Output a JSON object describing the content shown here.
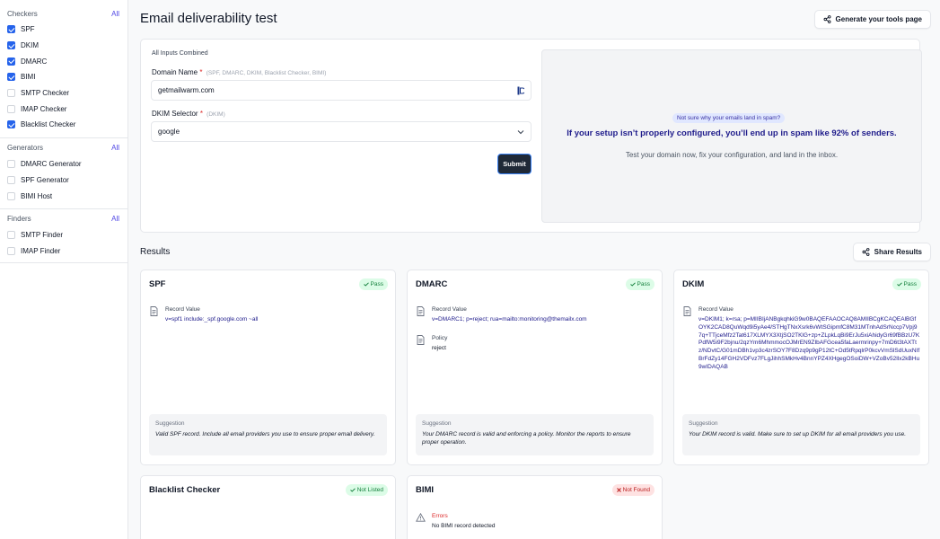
{
  "sidebar": {
    "sections": [
      {
        "title": "Checkers",
        "all": "All",
        "items": [
          {
            "label": "SPF",
            "checked": true
          },
          {
            "label": "DKIM",
            "checked": true
          },
          {
            "label": "DMARC",
            "checked": true
          },
          {
            "label": "BIMI",
            "checked": true
          },
          {
            "label": "SMTP Checker",
            "checked": false
          },
          {
            "label": "IMAP Checker",
            "checked": false
          },
          {
            "label": "Blacklist Checker",
            "checked": true
          }
        ]
      },
      {
        "title": "Generators",
        "all": "All",
        "items": [
          {
            "label": "DMARC Generator",
            "checked": false
          },
          {
            "label": "SPF Generator",
            "checked": false
          },
          {
            "label": "BIMI Host",
            "checked": false
          }
        ]
      },
      {
        "title": "Finders",
        "all": "All",
        "items": [
          {
            "label": "SMTP Finder",
            "checked": false
          },
          {
            "label": "IMAP Finder",
            "checked": false
          }
        ]
      }
    ]
  },
  "header": {
    "title": "Email deliverability test",
    "generate_button": "Generate your tools page"
  },
  "form": {
    "subtitle": "All Inputs Combined",
    "domain_label": "Domain Name",
    "domain_required": "*",
    "domain_hint": "(SPF, DMARC, DKIM, Blacklist Checker, BIMI)",
    "domain_value": "getmailwarm.com",
    "selector_label": "DKIM Selector",
    "selector_required": "*",
    "selector_hint": "(DKIM)",
    "selector_value": "google",
    "submit": "Submit"
  },
  "promo": {
    "badge": "Not sure why your emails land in spam?",
    "headline": "If your setup isn’t properly configured, you’ll end up in spam like 92% of senders.",
    "text": "Test your domain now, fix your configuration, and land in the inbox."
  },
  "results": {
    "title": "Results",
    "share_button": "Share Results",
    "cards": {
      "spf": {
        "title": "SPF",
        "status": "Pass",
        "record_label": "Record Value",
        "record_value": "v=spf1 include:_spf.google.com ~all",
        "suggestion_title": "Suggestion",
        "suggestion": "Valid SPF record. Include all email providers you use to ensure proper email delivery."
      },
      "dmarc": {
        "title": "DMARC",
        "status": "Pass",
        "record_label": "Record Value",
        "record_value": "v=DMARC1; p=reject; rua=mailto:monitoring@themailx.com",
        "policy_label": "Policy",
        "policy_value": "reject",
        "suggestion_title": "Suggestion",
        "suggestion": "Your DMARC record is valid and enforcing a policy. Monitor the reports to ensure proper operation."
      },
      "dkim": {
        "title": "DKIM",
        "status": "Pass",
        "record_label": "Record Value",
        "record_value": "v=DKIM1; k=rsa; p=MIIBIjANBgkqhkiG9w0BAQEFAAOCAQ8AMIIBCgKCAQEAlBGfOYK2CAD8QuWqd9i5yAe4/STHgTNxXsrk6vWtSGipmfC8M31MTnhAdSrNccp7Vpj97q+TTjceMfz2Tat617XLMYX3XtjSO2TKlG+zp+ZLpkLqBi9ErJu5xiAhidyGr69fBBzU7KPdfW5i9F2bjnu/2qzYm6MhmmocOJMrEN9ZIbAFGcea5faLaermrinpy+7mD6t3tAXTtz/NDvtC/G01mDBh1vp3c4zrSOY7F8Dzq9p9gP12tC+Od5tRpqlrP0kcvVmSlSdUuxNIfBrFdZy14FGH2VDFvz7FLgJihhSMkHv4BnnYPZ4XHgegOSoiDW+VZoBv52Ilx2kBHu9wIDAQAB",
        "suggestion_title": "Suggestion",
        "suggestion": "Your DKIM record is valid. Make sure to set up DKIM for all email providers you use."
      },
      "blacklist": {
        "title": "Blacklist Checker",
        "status": "Not Listed"
      },
      "bimi": {
        "title": "BIMI",
        "status": "Not Found",
        "errors_label": "Errors",
        "errors_value": "No BIMI record detected"
      }
    }
  },
  "colors": {
    "accent": "#4f46e5",
    "checkbox": "#2563eb",
    "pass": "#15803d",
    "fail": "#b91c1c",
    "link_value": "#1e1b8b"
  },
  "icons": [
    "share-icon",
    "check-icon",
    "x-icon",
    "document-icon",
    "warning-icon",
    "chevron-down-icon",
    "password-manager-icon"
  ]
}
